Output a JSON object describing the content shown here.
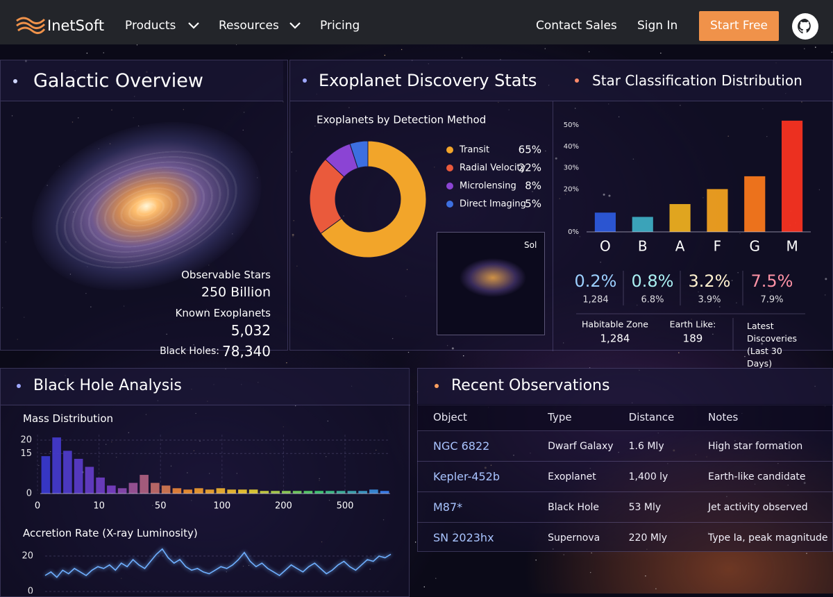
{
  "nav": {
    "brand": "InetSoft",
    "menu": [
      "Products",
      "Resources",
      "Pricing"
    ],
    "contact": "Contact Sales",
    "sign_in": "Sign In",
    "cta": "Start Free"
  },
  "galactic_overview": {
    "title": "Galactic Overview",
    "stats": [
      {
        "label": "Observable Stars",
        "value": "250 Billion"
      },
      {
        "label": "Known Exoplanets",
        "value": "5,032"
      },
      {
        "label": "Black Holes:",
        "value": "78,340"
      }
    ]
  },
  "exoplanet_stats": {
    "title": "Exoplanet Discovery Stats",
    "chart": {
      "type": "donut",
      "title": "Exoplanets by Detection Method",
      "categories": [
        "Transit",
        "Radial Velocity",
        "Microlensing",
        "Direct Imaging"
      ],
      "values": [
        65,
        22,
        8,
        5
      ],
      "value_labels": [
        "65%",
        "22%",
        "8%",
        "5%"
      ],
      "colors": [
        "#f2a52a",
        "#ea5a3c",
        "#8b44d4",
        "#3d6fe0"
      ]
    },
    "inset_label": "Sol"
  },
  "star_classification": {
    "title": "Star Classification Distribution",
    "chart": {
      "type": "bar",
      "categories": [
        "O",
        "B",
        "A",
        "F",
        "G",
        "M"
      ],
      "values": [
        9,
        7,
        13,
        20,
        26,
        52
      ],
      "colors": [
        "#2e5be0",
        "#3fb0c6",
        "#f2b21e",
        "#f7a51f",
        "#ff7b1c",
        "#ff3321"
      ],
      "ylim": [
        0,
        55
      ],
      "yticks": [
        {
          "value": 0,
          "label": "0%"
        },
        {
          "value": 20,
          "label": "20%"
        },
        {
          "value": 30,
          "label": "30%"
        },
        {
          "value": 40,
          "label": "40%"
        },
        {
          "value": 50,
          "label": "50%"
        }
      ]
    },
    "rates": [
      {
        "value": "0.2%",
        "sub": "1,284",
        "color": "#9cd0ff"
      },
      {
        "value": "0.8%",
        "sub": "6.8%",
        "color": "#aaf0f2"
      },
      {
        "value": "3.2%",
        "sub": "3.9%",
        "color": "#fff1cf"
      },
      {
        "value": "7.5%",
        "sub": "7.9%",
        "color": "#ff93a6"
      }
    ],
    "summary": [
      {
        "label": "Habitable Zone",
        "value": "1,284"
      },
      {
        "label": "Earth Like:",
        "value": "189"
      },
      {
        "label": "Latest Discoveries (Last 30 Days)"
      }
    ]
  },
  "black_hole_analysis": {
    "title": "Black Hole Analysis",
    "mass_distribution": {
      "type": "bar",
      "title": "Mass Distribution",
      "values": [
        14,
        21,
        16,
        13,
        10,
        6,
        3,
        2,
        4,
        7,
        4,
        3,
        2,
        1.5,
        2,
        1.5,
        2,
        1.5,
        1.5,
        1.5,
        1,
        1,
        1,
        1,
        1,
        1,
        1,
        1,
        1,
        1,
        1.5,
        1
      ],
      "color_stops": [
        "#3a3ad0",
        "#7c3fc4",
        "#f08a30",
        "#f0d030",
        "#40d070",
        "#3a80f0"
      ],
      "ylim": [
        0,
        22
      ],
      "yticks": [
        0,
        15,
        20
      ],
      "xticks": [
        0,
        10,
        50,
        100,
        200,
        500
      ],
      "grid": true
    },
    "accretion_rate": {
      "type": "line",
      "title": "Accretion Rate (X-ray Luminosity)",
      "values": [
        9,
        11,
        8,
        12,
        10,
        13,
        11,
        9,
        12,
        14,
        13,
        15,
        12,
        16,
        14,
        18,
        15,
        13,
        17,
        21,
        24,
        19,
        16,
        18,
        14,
        12,
        13,
        11,
        10,
        12,
        14,
        13,
        15,
        18,
        22,
        17,
        14,
        16,
        13,
        11,
        9,
        12,
        15,
        13,
        11,
        14,
        16,
        13,
        10,
        12,
        15,
        17,
        14,
        12,
        15,
        18,
        17,
        20,
        19,
        21
      ],
      "color": "#6fb0ff",
      "ylim": [
        0,
        24
      ],
      "yticks": [
        0,
        20
      ],
      "grid": true
    }
  },
  "recent_observations": {
    "title": "Recent Observations",
    "columns": [
      "Object",
      "Type",
      "Distance",
      "Notes"
    ],
    "rows": [
      [
        "NGC 6822",
        "Dwarf Galaxy",
        "1.6 Mly",
        "High star formation"
      ],
      [
        "Kepler-452b",
        "Exoplanet",
        "1,400 ly",
        "Earth-like candidate"
      ],
      [
        "M87*",
        "Black Hole",
        "53 Mly",
        "Jet activity observed"
      ],
      [
        "SN 2023hx",
        "Supernova",
        "220 Mly",
        "Type Ia, peak magnitude"
      ]
    ]
  }
}
